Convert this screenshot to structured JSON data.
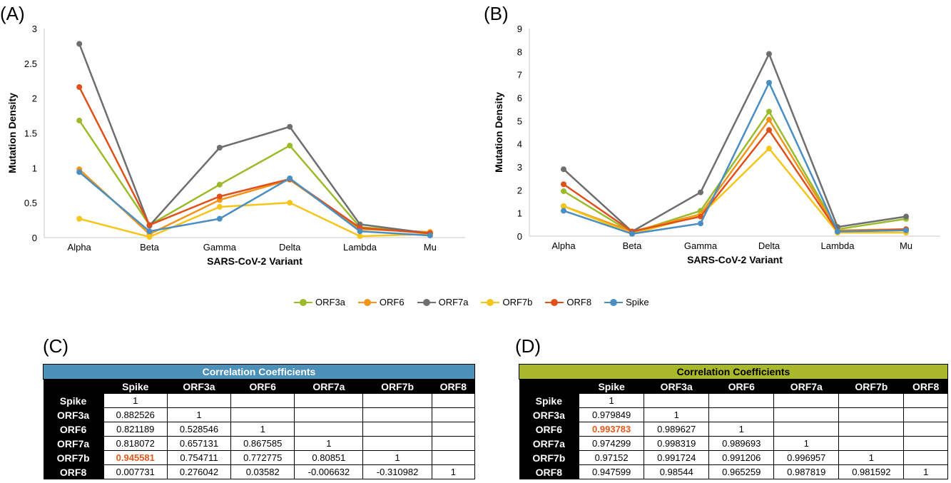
{
  "panels": {
    "a": "(A)",
    "b": "(B)",
    "c": "(C)",
    "d": "(D)"
  },
  "series_colors": {
    "ORF3a": "#9bbb2a",
    "ORF6": "#f0951a",
    "ORF7a": "#6e6e6e",
    "ORF7b": "#f5c51a",
    "ORF8": "#e0501a",
    "Spike": "#4a8ec2"
  },
  "chart_data": [
    {
      "type": "line",
      "panel": "(A)",
      "categories": [
        "Alpha",
        "Beta",
        "Gamma",
        "Delta",
        "Lambda",
        "Mu"
      ],
      "xlabel": "SARS-CoV-2 Variant",
      "ylabel": "Mutation Density",
      "ylim": [
        0,
        3
      ],
      "yticks": [
        "0",
        "0.5",
        "1",
        "1.5",
        "2",
        "2.5",
        "3"
      ],
      "grid": false,
      "legend": "bottom",
      "series": [
        {
          "name": "ORF3a",
          "values": [
            1.68,
            0.18,
            0.76,
            1.32,
            0.15,
            0.07
          ]
        },
        {
          "name": "ORF6",
          "values": [
            0.98,
            0.05,
            0.54,
            0.83,
            0.12,
            0.08
          ]
        },
        {
          "name": "ORF7a",
          "values": [
            2.78,
            0.17,
            1.29,
            1.59,
            0.19,
            0.06
          ]
        },
        {
          "name": "ORF7b",
          "values": [
            0.27,
            0.01,
            0.44,
            0.5,
            0.02,
            0.05
          ]
        },
        {
          "name": "ORF8",
          "values": [
            2.16,
            0.18,
            0.59,
            0.84,
            0.14,
            0.06
          ]
        },
        {
          "name": "Spike",
          "values": [
            0.94,
            0.09,
            0.27,
            0.85,
            0.09,
            0.03
          ]
        }
      ]
    },
    {
      "type": "line",
      "panel": "(B)",
      "categories": [
        "Alpha",
        "Beta",
        "Gamma",
        "Delta",
        "Lambda",
        "Mu"
      ],
      "xlabel": "SARS-CoV-2 Variant",
      "ylabel": "Mutation Density",
      "ylim": [
        0,
        9
      ],
      "yticks": [
        "0",
        "1",
        "2",
        "3",
        "4",
        "5",
        "6",
        "7",
        "8",
        "9"
      ],
      "grid": false,
      "legend": "bottom",
      "series": [
        {
          "name": "ORF3a",
          "values": [
            1.95,
            0.15,
            1.1,
            5.4,
            0.3,
            0.75
          ]
        },
        {
          "name": "ORF6",
          "values": [
            1.3,
            0.2,
            0.95,
            5.05,
            0.25,
            0.3
          ]
        },
        {
          "name": "ORF7a",
          "values": [
            2.9,
            0.2,
            1.9,
            7.9,
            0.4,
            0.85
          ]
        },
        {
          "name": "ORF7b",
          "values": [
            1.3,
            0.1,
            0.9,
            3.8,
            0.15,
            0.15
          ]
        },
        {
          "name": "ORF8",
          "values": [
            2.25,
            0.2,
            0.85,
            4.6,
            0.2,
            0.3
          ]
        },
        {
          "name": "Spike",
          "values": [
            1.1,
            0.1,
            0.55,
            6.65,
            0.2,
            0.25
          ]
        }
      ]
    }
  ],
  "legend_items": [
    "ORF3a",
    "ORF6",
    "ORF7a",
    "ORF7b",
    "ORF8",
    "Spike"
  ],
  "table_c": {
    "title": "Correlation Coefficients",
    "headers": [
      "Spike",
      "ORF3a",
      "ORF6",
      "ORF7a",
      "ORF7b",
      "ORF8"
    ],
    "rows": [
      {
        "label": "Spike",
        "cells": [
          "1",
          "",
          "",
          "",
          "",
          ""
        ]
      },
      {
        "label": "ORF3a",
        "cells": [
          "0.882526",
          "1",
          "",
          "",
          "",
          ""
        ]
      },
      {
        "label": "ORF6",
        "cells": [
          "0.821189",
          "0.528546",
          "1",
          "",
          "",
          ""
        ]
      },
      {
        "label": "ORF7a",
        "cells": [
          "0.818072",
          "0.657131",
          "0.867585",
          "1",
          "",
          ""
        ]
      },
      {
        "label": "ORF7b",
        "cells": [
          "0.945581",
          "0.754711",
          "0.772775",
          "0.80851",
          "1",
          ""
        ]
      },
      {
        "label": "ORF8",
        "cells": [
          "0.007731",
          "0.276042",
          "0.03582",
          "-0.006632",
          "-0.310982",
          "1"
        ]
      }
    ],
    "highlight": {
      "row": 4,
      "col": 0
    }
  },
  "table_d": {
    "title": "Correlation Coefficients",
    "headers": [
      "Spike",
      "ORF3a",
      "ORF6",
      "ORF7a",
      "ORF7b",
      "ORF8"
    ],
    "rows": [
      {
        "label": "Spike",
        "cells": [
          "1",
          "",
          "",
          "",
          "",
          ""
        ]
      },
      {
        "label": "ORF3a",
        "cells": [
          "0.979849",
          "1",
          "",
          "",
          "",
          ""
        ]
      },
      {
        "label": "ORF6",
        "cells": [
          "0.993783",
          "0.989627",
          "1",
          "",
          "",
          ""
        ]
      },
      {
        "label": "ORF7a",
        "cells": [
          "0.974299",
          "0.998319",
          "0.989693",
          "1",
          "",
          ""
        ]
      },
      {
        "label": "ORF7b",
        "cells": [
          "0.97152",
          "0.991724",
          "0.991206",
          "0.996957",
          "1",
          ""
        ]
      },
      {
        "label": "ORF8",
        "cells": [
          "0.947599",
          "0.98544",
          "0.965259",
          "0.987819",
          "0.981592",
          "1"
        ]
      }
    ],
    "highlight": {
      "row": 2,
      "col": 0
    }
  }
}
